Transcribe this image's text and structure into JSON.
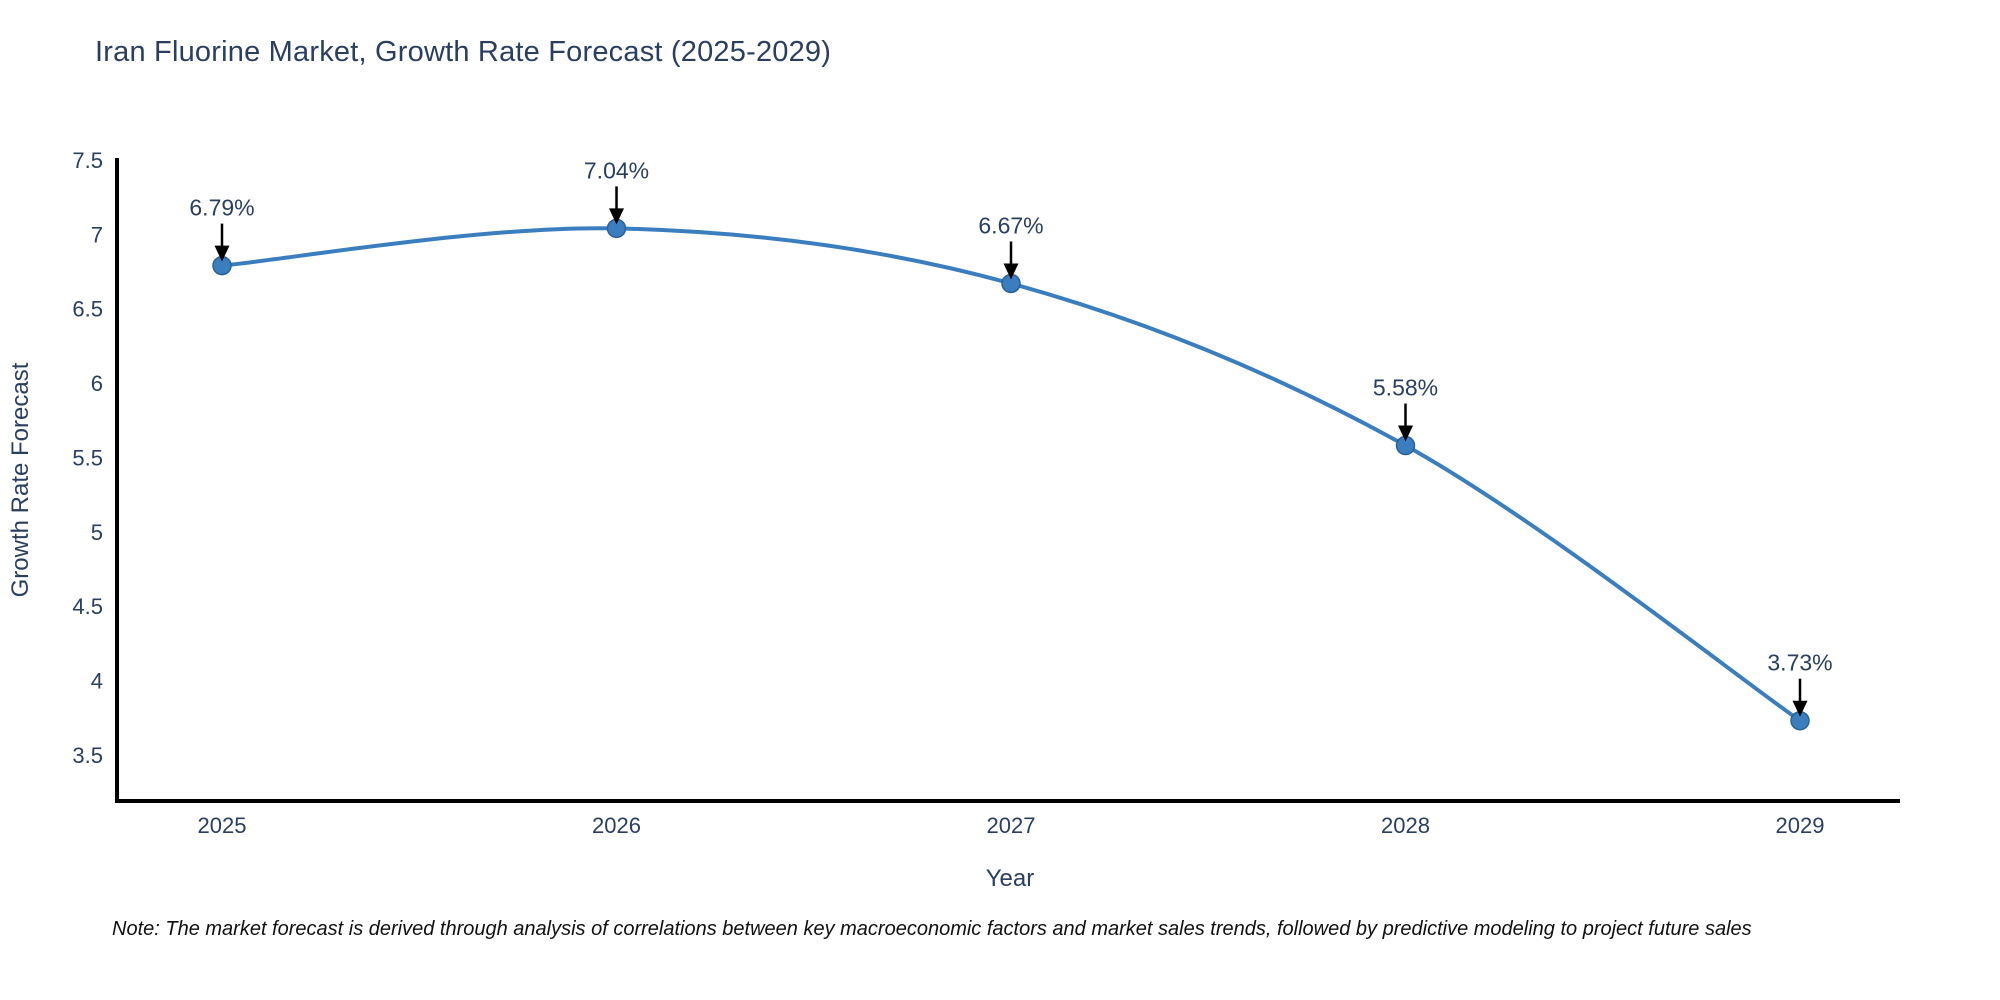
{
  "chart": {
    "title": "Iran Fluorine Market, Growth Rate Forecast (2025-2029)"
  },
  "chart_data": {
    "type": "line",
    "x": [
      2025,
      2026,
      2027,
      2028,
      2029
    ],
    "y": [
      6.79,
      7.04,
      6.67,
      5.58,
      3.73
    ],
    "point_labels": [
      "6.79%",
      "7.04%",
      "6.67%",
      "5.58%",
      "3.73%"
    ],
    "title": "Iran Fluorine Market, Growth Rate Forecast (2025-2029)",
    "xlabel": "Year",
    "ylabel": "Growth Rate Forecast",
    "ylim": [
      3.19,
      7.5
    ],
    "yticks": [
      3.5,
      4,
      4.5,
      5,
      5.5,
      6,
      6.5,
      7,
      7.5
    ],
    "line_shape": "spline",
    "grid": false,
    "legend": "none",
    "colors": {
      "line": "#3a7ebf",
      "marker_fill": "#3a7ebf",
      "marker_edge": "#2a6298",
      "axis": "#000000",
      "text": "#2a3f5f",
      "annotation_arrow": "#000000"
    }
  },
  "note": {
    "text": "Note: The market forecast is derived through analysis of correlations between key macroeconomic factors and market sales trends, followed by predictive modeling to project future sales"
  }
}
